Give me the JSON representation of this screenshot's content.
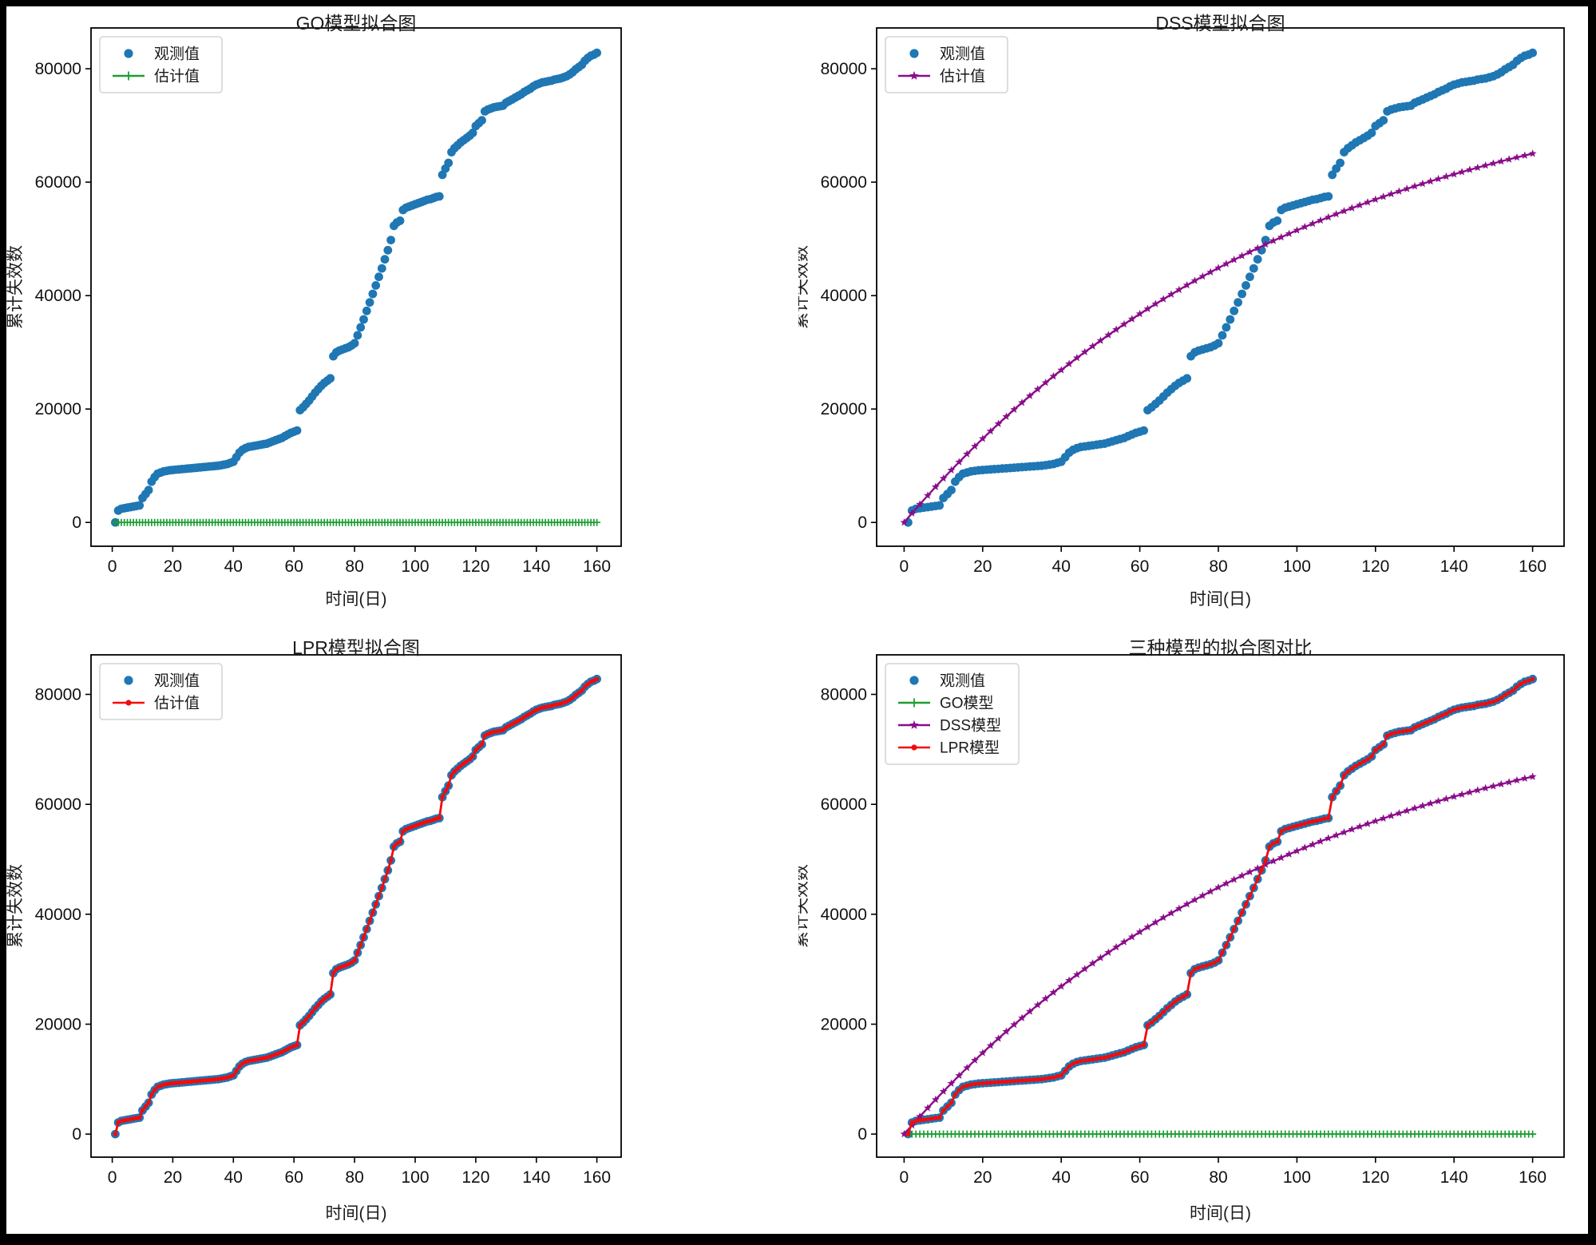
{
  "figure": {
    "background": "#ffffff",
    "frame_color": "#000000",
    "colors": {
      "observed_blue": "#1f77b4",
      "go_green": "#1b9e31",
      "dss_purple": "#8a0d8a",
      "lpr_red": "#f30b0b",
      "axis_black": "#000000",
      "tick_text": "#111111"
    }
  },
  "chart_data": {
    "type": "multi-panel",
    "panels": 4,
    "x_unit": "day",
    "shared_series": {
      "observed": {
        "name": "观测值",
        "x_start": 1,
        "x_step": 1,
        "values": [
          0,
          2100,
          2400,
          2500,
          2600,
          2700,
          2800,
          2900,
          3000,
          4300,
          5000,
          5700,
          7200,
          8000,
          8600,
          8800,
          9000,
          9100,
          9200,
          9250,
          9300,
          9350,
          9400,
          9450,
          9500,
          9550,
          9600,
          9650,
          9700,
          9750,
          9800,
          9850,
          9900,
          9950,
          10000,
          10100,
          10200,
          10300,
          10500,
          10700,
          11500,
          12300,
          12800,
          13100,
          13300,
          13400,
          13500,
          13600,
          13700,
          13800,
          13900,
          14100,
          14300,
          14500,
          14700,
          14900,
          15200,
          15500,
          15800,
          16000,
          16200,
          19800,
          20300,
          20900,
          21500,
          22200,
          22900,
          23500,
          24100,
          24600,
          25000,
          25400,
          29300,
          30000,
          30300,
          30500,
          30700,
          30900,
          31200,
          31600,
          33000,
          34400,
          35800,
          37300,
          38800,
          40300,
          41800,
          43300,
          44800,
          46400,
          48000,
          49800,
          52300,
          52900,
          53200,
          55100,
          55500,
          55700,
          55900,
          56100,
          56300,
          56500,
          56700,
          56900,
          57000,
          57200,
          57400,
          57500,
          61300,
          62400,
          63400,
          65300,
          66000,
          66500,
          67000,
          67400,
          67800,
          68200,
          68700,
          69900,
          70400,
          70900,
          72500,
          72800,
          73000,
          73200,
          73300,
          73400,
          73500,
          74000,
          74300,
          74600,
          74900,
          75200,
          75500,
          75900,
          76200,
          76500,
          76900,
          77200,
          77400,
          77600,
          77700,
          77800,
          77900,
          78100,
          78200,
          78300,
          78500,
          78700,
          79000,
          79400,
          79900,
          80300,
          80700,
          81400,
          81900,
          82300,
          82500,
          82800
        ]
      },
      "go": {
        "name": "GO模型估计值",
        "x_start": 1,
        "x_step": 1,
        "count": 160,
        "constant": 0
      },
      "dss": {
        "name": "DSS模型估计值",
        "x_start": 0,
        "x_step": 2,
        "values": [
          0,
          1614,
          3196,
          4747,
          6266,
          7756,
          9216,
          10647,
          12051,
          13426,
          14774,
          16095,
          17390,
          18659,
          19904,
          21123,
          22319,
          23491,
          24639,
          25765,
          26869,
          27950,
          29011,
          30050,
          31069,
          32068,
          33047,
          34006,
          34946,
          35868,
          36772,
          37658,
          38526,
          39377,
          40211,
          41028,
          41830,
          42615,
          43384,
          44139,
          44880,
          45604,
          46315,
          47011,
          47694,
          48365,
          49022,
          49666,
          50296,
          50914,
          51518,
          52111,
          52690,
          53265,
          53823,
          54371,
          54908,
          55435,
          55951,
          56457,
          56953,
          57439,
          57916,
          58383,
          58840,
          59289,
          59728,
          60159,
          60581,
          60995,
          61402,
          61800,
          62189,
          62572,
          62947,
          63315,
          63675,
          64028,
          64374,
          64713,
          65045
        ]
      },
      "lpr": {
        "name": "LPR模型估计值",
        "x_start": 1,
        "x_step": 1,
        "values_ref": "observed"
      }
    },
    "charts": [
      {
        "title": "GO模型拟合图",
        "xlabel": "时间(日)",
        "ylabel": "累计失效数",
        "xlim": [
          -7,
          168
        ],
        "ylim": [
          -4200,
          87200
        ],
        "xticks": [
          0,
          20,
          40,
          60,
          80,
          100,
          120,
          140,
          160
        ],
        "yticks": [
          0,
          20000,
          40000,
          60000,
          80000
        ],
        "legend_position": "upper-left",
        "series": [
          {
            "ref": "observed",
            "label": "观测值",
            "style": "scatter",
            "color": "#1f77b4"
          },
          {
            "ref": "go",
            "label": "估计值",
            "style": "line-plus",
            "color": "#1b9e31"
          }
        ]
      },
      {
        "title": "DSS模型拟合图",
        "xlabel": "时间(日)",
        "ylabel": "累计失效数",
        "xlim": [
          -7,
          168
        ],
        "ylim": [
          -4200,
          87200
        ],
        "xticks": [
          0,
          20,
          40,
          60,
          80,
          100,
          120,
          140,
          160
        ],
        "yticks": [
          0,
          20000,
          40000,
          60000,
          80000
        ],
        "legend_position": "upper-left",
        "series": [
          {
            "ref": "observed",
            "label": "观测值",
            "style": "scatter",
            "color": "#1f77b4"
          },
          {
            "ref": "dss",
            "label": "估计值",
            "style": "line-star",
            "color": "#8a0d8a"
          }
        ]
      },
      {
        "title": "LPR模型拟合图",
        "xlabel": "时间(日)",
        "ylabel": "累计失效数",
        "xlim": [
          -7,
          168
        ],
        "ylim": [
          -4200,
          87200
        ],
        "xticks": [
          0,
          20,
          40,
          60,
          80,
          100,
          120,
          140,
          160
        ],
        "yticks": [
          0,
          20000,
          40000,
          60000,
          80000
        ],
        "legend_position": "upper-left",
        "series": [
          {
            "ref": "observed",
            "label": "观测值",
            "style": "scatter",
            "color": "#1f77b4"
          },
          {
            "ref": "lpr",
            "label": "估计值",
            "style": "line-dot",
            "color": "#f30b0b"
          }
        ]
      },
      {
        "title": "三种模型的拟合图对比",
        "xlabel": "时间(日)",
        "ylabel": "累计失效数",
        "xlim": [
          -7,
          168
        ],
        "ylim": [
          -4200,
          87200
        ],
        "xticks": [
          0,
          20,
          40,
          60,
          80,
          100,
          120,
          140,
          160
        ],
        "yticks": [
          0,
          20000,
          40000,
          60000,
          80000
        ],
        "legend_position": "upper-left",
        "series": [
          {
            "ref": "observed",
            "label": "观测值",
            "style": "scatter",
            "color": "#1f77b4"
          },
          {
            "ref": "go",
            "label": "GO模型",
            "style": "line-plus",
            "color": "#1b9e31"
          },
          {
            "ref": "dss",
            "label": "DSS模型",
            "style": "line-star",
            "color": "#8a0d8a"
          },
          {
            "ref": "lpr",
            "label": "LPR模型",
            "style": "line-dot",
            "color": "#f30b0b"
          }
        ]
      }
    ]
  }
}
